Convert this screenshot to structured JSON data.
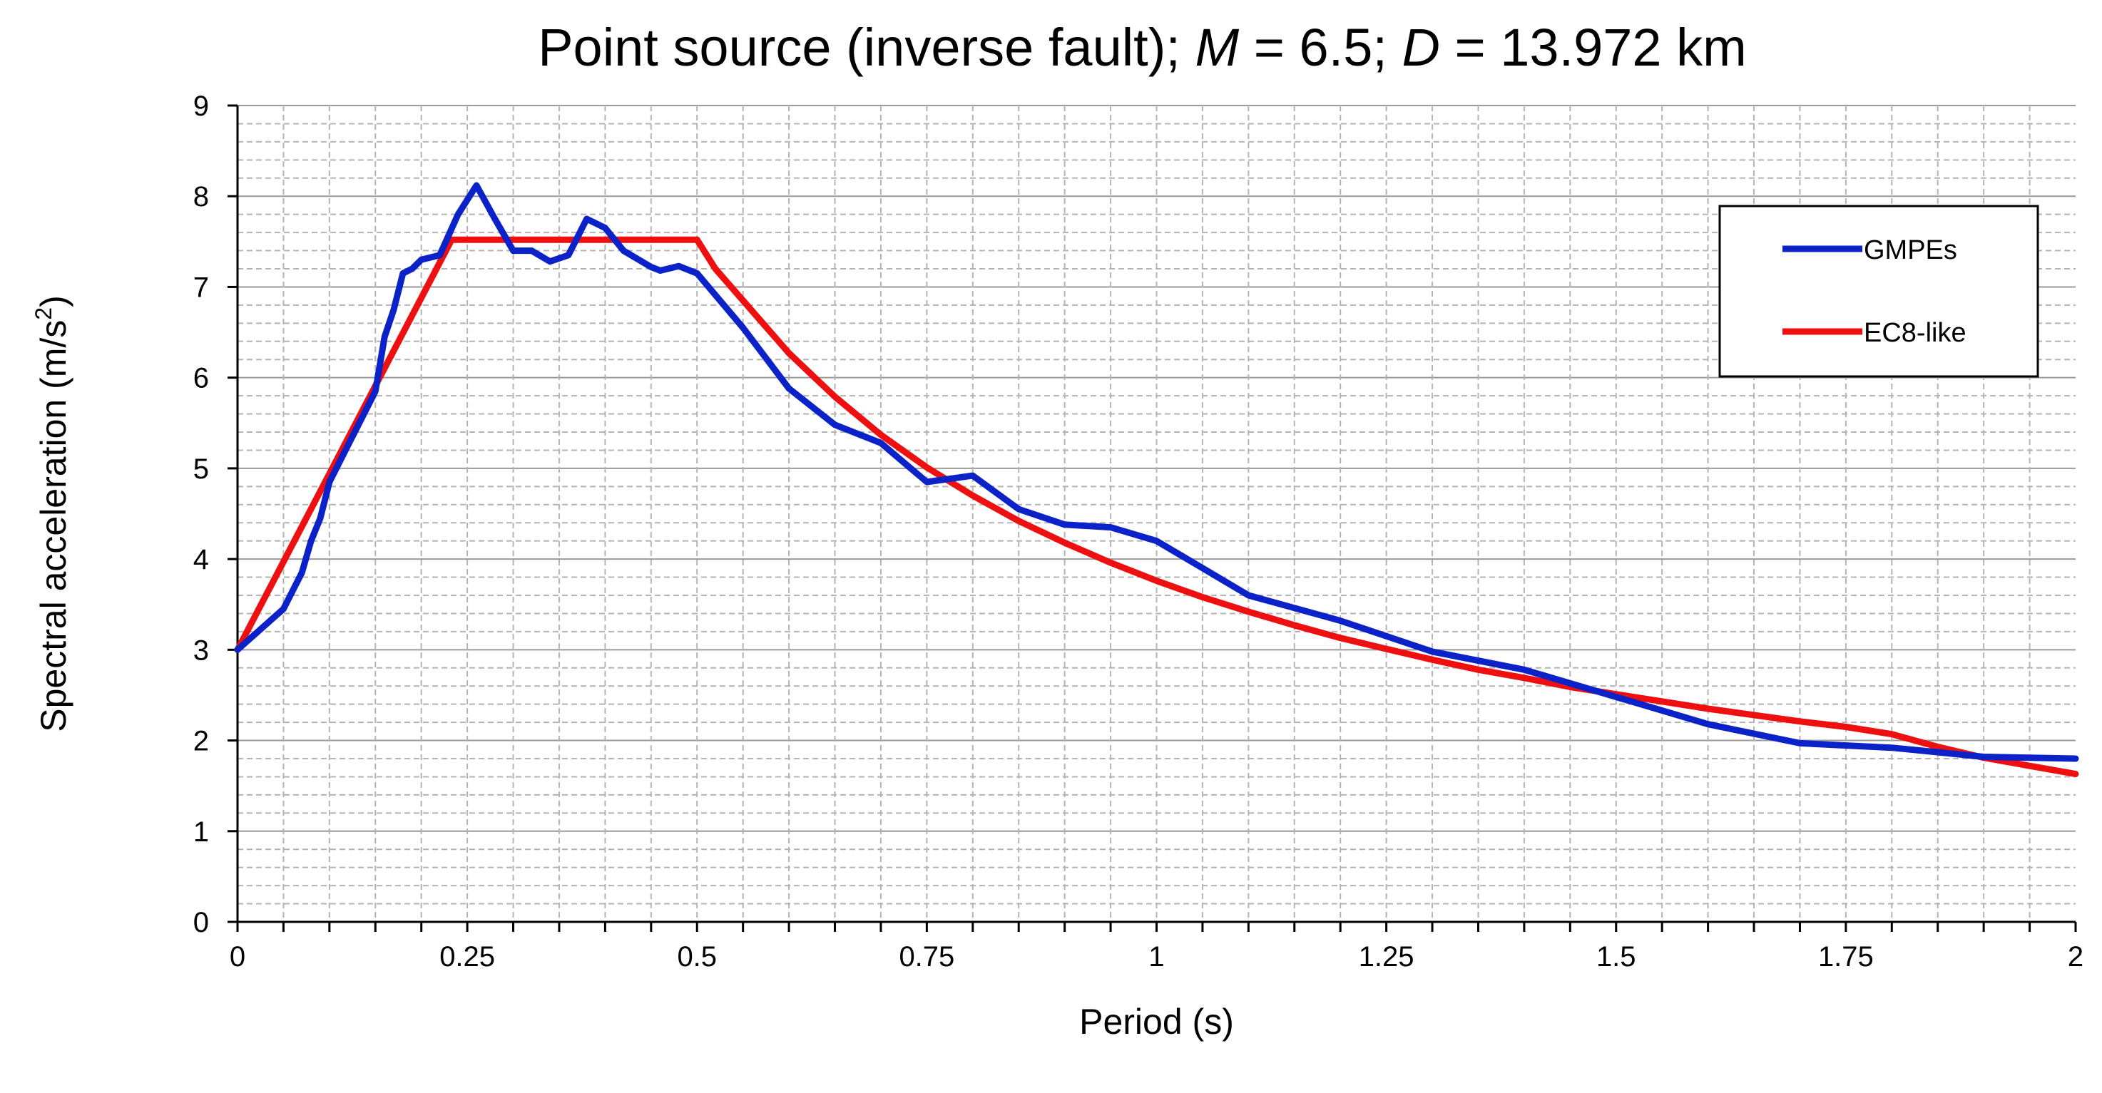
{
  "chart_data": {
    "type": "line",
    "title_parts": [
      {
        "text": "Point source (inverse fault); ",
        "italic": false
      },
      {
        "text": "M",
        "italic": true
      },
      {
        "text": " = 6.5; ",
        "italic": false
      },
      {
        "text": "D",
        "italic": true
      },
      {
        "text": " = 13.972 km",
        "italic": false
      }
    ],
    "xlabel": "Period (s)",
    "ylabel_main": "Spectral acceleration (m/s",
    "ylabel_sup": "2",
    "ylabel_close": ")",
    "xlim": [
      0,
      2
    ],
    "ylim": [
      0,
      9
    ],
    "xticks": [
      0,
      0.25,
      0.5,
      0.75,
      1,
      1.25,
      1.5,
      1.75,
      2
    ],
    "xtick_labels": [
      "0",
      "0.25",
      "0.5",
      "0.75",
      "1",
      "1.25",
      "1.5",
      "1.75",
      "2"
    ],
    "yticks": [
      0,
      1,
      2,
      3,
      4,
      5,
      6,
      7,
      8,
      9
    ],
    "ytick_labels": [
      "0",
      "1",
      "2",
      "3",
      "4",
      "5",
      "6",
      "7",
      "8",
      "9"
    ],
    "x_minor_step": 0.05,
    "y_minor_step": 0.2,
    "grid": true,
    "legend_position": "top-right",
    "series": [
      {
        "name": "GMPEs",
        "color": "#0a22c8",
        "points": [
          [
            0,
            3.0
          ],
          [
            0.05,
            3.45
          ],
          [
            0.07,
            3.85
          ],
          [
            0.08,
            4.2
          ],
          [
            0.09,
            4.45
          ],
          [
            0.1,
            4.85
          ],
          [
            0.12,
            5.25
          ],
          [
            0.15,
            5.85
          ],
          [
            0.16,
            6.45
          ],
          [
            0.17,
            6.75
          ],
          [
            0.18,
            7.15
          ],
          [
            0.19,
            7.2
          ],
          [
            0.2,
            7.3
          ],
          [
            0.22,
            7.35
          ],
          [
            0.24,
            7.8
          ],
          [
            0.26,
            8.12
          ],
          [
            0.28,
            7.75
          ],
          [
            0.3,
            7.4
          ],
          [
            0.32,
            7.4
          ],
          [
            0.34,
            7.28
          ],
          [
            0.36,
            7.35
          ],
          [
            0.38,
            7.75
          ],
          [
            0.4,
            7.65
          ],
          [
            0.42,
            7.4
          ],
          [
            0.45,
            7.22
          ],
          [
            0.46,
            7.18
          ],
          [
            0.48,
            7.23
          ],
          [
            0.5,
            7.15
          ],
          [
            0.55,
            6.55
          ],
          [
            0.6,
            5.88
          ],
          [
            0.65,
            5.48
          ],
          [
            0.7,
            5.28
          ],
          [
            0.75,
            4.85
          ],
          [
            0.8,
            4.92
          ],
          [
            0.85,
            4.55
          ],
          [
            0.9,
            4.38
          ],
          [
            0.95,
            4.35
          ],
          [
            1.0,
            4.2
          ],
          [
            1.05,
            3.9
          ],
          [
            1.1,
            3.6
          ],
          [
            1.2,
            3.32
          ],
          [
            1.3,
            2.98
          ],
          [
            1.4,
            2.78
          ],
          [
            1.5,
            2.48
          ],
          [
            1.6,
            2.18
          ],
          [
            1.7,
            1.97
          ],
          [
            1.8,
            1.92
          ],
          [
            1.9,
            1.82
          ],
          [
            2.0,
            1.8
          ]
        ]
      },
      {
        "name": "EC8-like",
        "color": "#ee1010",
        "points": [
          [
            0,
            3.0
          ],
          [
            0.233,
            7.52
          ],
          [
            0.5,
            7.52
          ],
          [
            0.52,
            7.2
          ],
          [
            0.55,
            6.85
          ],
          [
            0.6,
            6.27
          ],
          [
            0.65,
            5.79
          ],
          [
            0.7,
            5.37
          ],
          [
            0.75,
            5.01
          ],
          [
            0.8,
            4.7
          ],
          [
            0.85,
            4.42
          ],
          [
            0.9,
            4.18
          ],
          [
            0.95,
            3.96
          ],
          [
            1.0,
            3.76
          ],
          [
            1.05,
            3.58
          ],
          [
            1.1,
            3.42
          ],
          [
            1.15,
            3.27
          ],
          [
            1.2,
            3.13
          ],
          [
            1.25,
            3.01
          ],
          [
            1.3,
            2.89
          ],
          [
            1.35,
            2.78
          ],
          [
            1.4,
            2.69
          ],
          [
            1.45,
            2.59
          ],
          [
            1.5,
            2.51
          ],
          [
            1.55,
            2.43
          ],
          [
            1.6,
            2.35
          ],
          [
            1.65,
            2.28
          ],
          [
            1.7,
            2.21
          ],
          [
            1.75,
            2.15
          ],
          [
            1.8,
            2.07
          ],
          [
            1.85,
            1.93
          ],
          [
            1.9,
            1.81
          ],
          [
            1.95,
            1.72
          ],
          [
            2.0,
            1.63
          ]
        ]
      }
    ]
  }
}
